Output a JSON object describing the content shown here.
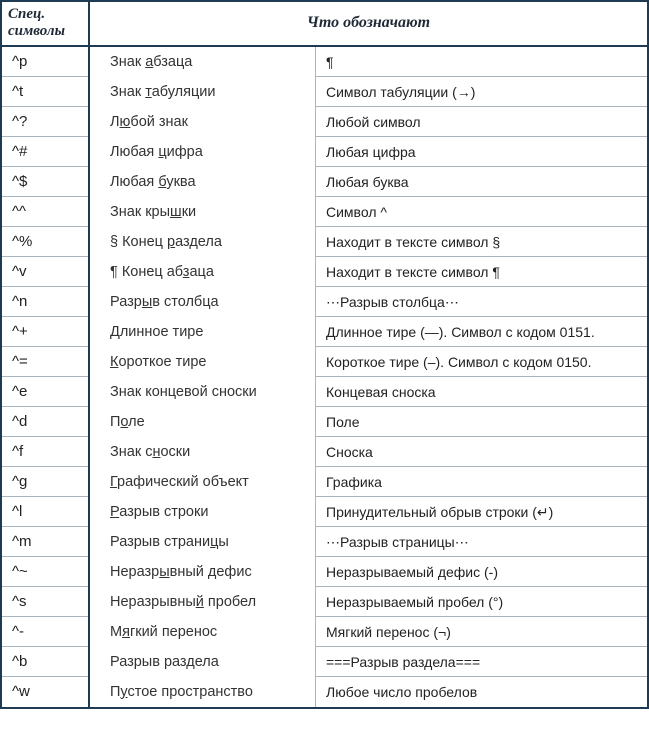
{
  "header": {
    "left": "Спец. символы",
    "right": "Что обозначают"
  },
  "rows": [
    {
      "sym": "^p",
      "mid_pre": "Знак ",
      "mid_u": "а",
      "mid_post": "бзаца",
      "desc": " ¶"
    },
    {
      "sym": "^t",
      "mid_pre": "Знак ",
      "mid_u": "т",
      "mid_post": "абуляции",
      "desc": "Символ табуляции (→)"
    },
    {
      "sym": "^?",
      "mid_pre": "Л",
      "mid_u": "ю",
      "mid_post": "бой знак",
      "desc": "Любой символ"
    },
    {
      "sym": "^#",
      "mid_pre": "Любая ",
      "mid_u": "ц",
      "mid_post": "ифра",
      "desc": "Любая цифра"
    },
    {
      "sym": "^$",
      "mid_pre": "Любая ",
      "mid_u": "б",
      "mid_post": "уква",
      "desc": "Любая буква"
    },
    {
      "sym": "^^",
      "mid_pre": "Знак кры",
      "mid_u": "ш",
      "mid_post": "ки",
      "desc": "Символ ^"
    },
    {
      "sym": "^%",
      "mid_pre": "§ Конец ",
      "mid_u": "р",
      "mid_post": "аздела",
      "desc": "Находит в тексте символ §"
    },
    {
      "sym": "^v",
      "mid_pre": "¶ Конец аб",
      "mid_u": "з",
      "mid_post": "аца",
      "desc": "Находит в тексте символ ¶"
    },
    {
      "sym": "^n",
      "mid_pre": "Разр",
      "mid_u": "ы",
      "mid_post": "в столбца",
      "desc": "⋯Разрыв столбца⋯"
    },
    {
      "sym": "^+",
      "mid_pre": "",
      "mid_u": "Д",
      "mid_post": "линное тире",
      "desc": "Длинное тире (—). Символ с кодом 0151."
    },
    {
      "sym": "^=",
      "mid_pre": "",
      "mid_u": "К",
      "mid_post": "ороткое тире",
      "desc": "Короткое тире (–). Символ с кодом 0150."
    },
    {
      "sym": "^e",
      "mid_pre": "Знак концевой сноски",
      "mid_u": "",
      "mid_post": "",
      "desc": "Концевая сноска"
    },
    {
      "sym": "^d",
      "mid_pre": "П",
      "mid_u": "о",
      "mid_post": "ле",
      "desc": "Поле"
    },
    {
      "sym": "^f",
      "mid_pre": "Знак с",
      "mid_u": "н",
      "mid_post": "оски",
      "desc": "Сноска"
    },
    {
      "sym": "^g",
      "mid_pre": "",
      "mid_u": "Г",
      "mid_post": "рафический объект",
      "desc": "Графика"
    },
    {
      "sym": "^l",
      "mid_pre": "",
      "mid_u": "Р",
      "mid_post": "азрыв строки",
      "desc": "Принудительный обрыв строки (↵)"
    },
    {
      "sym": "^m",
      "mid_pre": "Разрыв страни",
      "mid_u": "ц",
      "mid_post": "ы",
      "desc": "⋯Разрыв страницы⋯"
    },
    {
      "sym": "^~",
      "mid_pre": "Неразр",
      "mid_u": "ы",
      "mid_post": "вный дефис",
      "desc": "Неразрываемый дефис (-)"
    },
    {
      "sym": "^s",
      "mid_pre": "Неразрывны",
      "mid_u": "й",
      "mid_post": " пробел",
      "desc": "Неразрываемый пробел (°)"
    },
    {
      "sym": "^-",
      "mid_pre": "М",
      "mid_u": "я",
      "mid_post": "гкий перенос",
      "desc": "Мягкий перенос (¬)"
    },
    {
      "sym": "^b",
      "mid_pre": "Разрыв раздела",
      "mid_u": "",
      "mid_post": "",
      "desc": "===Разрыв раздела==="
    },
    {
      "sym": "^w",
      "mid_pre": "П",
      "mid_u": "у",
      "mid_post": "стое пространство",
      "desc": "Любое число пробелов"
    }
  ]
}
